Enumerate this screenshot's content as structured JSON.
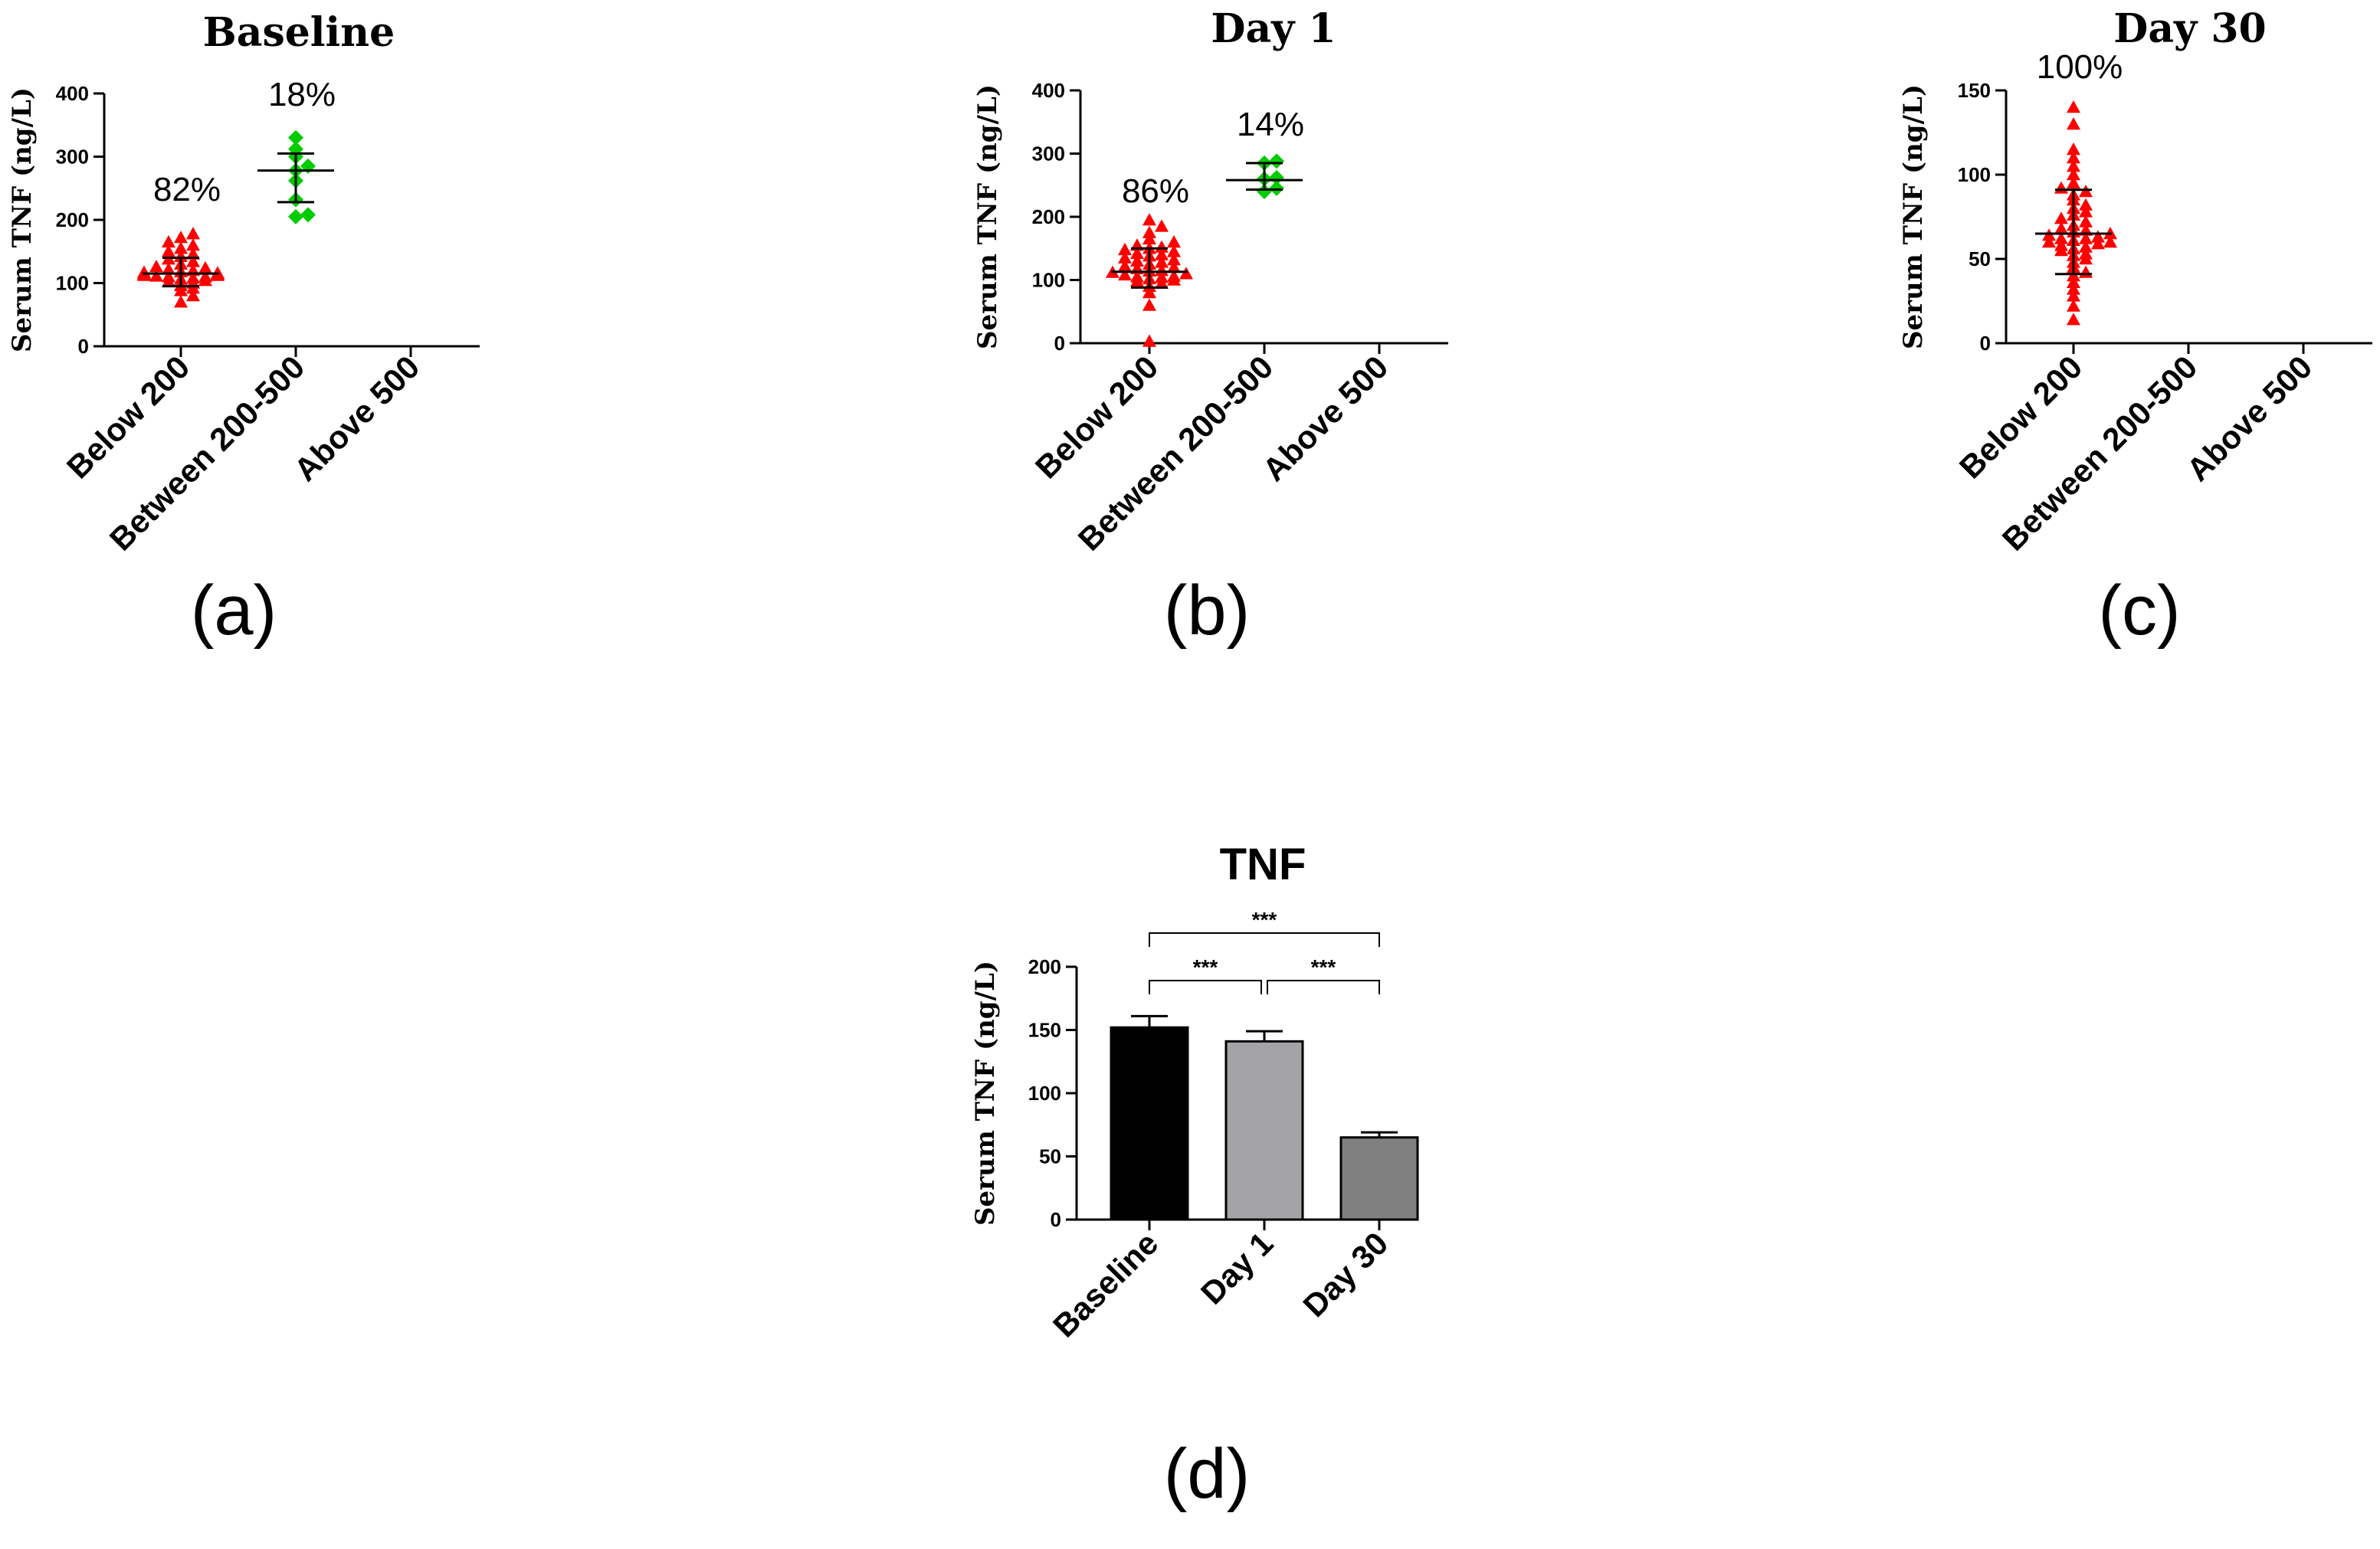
{
  "chart_data": [
    {
      "id": "a",
      "type": "scatter",
      "title": "Baseline",
      "ylabel": "Serum TNF  (ng/L)",
      "ylim": [
        0,
        400
      ],
      "yticks": [
        0,
        100,
        200,
        300,
        400
      ],
      "categories": [
        "Below 200",
        "Between 200-500",
        "Above 500"
      ],
      "panel_label": "(a)",
      "groups": [
        {
          "category": "Below 200",
          "color": "#ff0000",
          "marker": "triangle",
          "percent_label": "82%",
          "mean": 115,
          "sd_low": 95,
          "sd_high": 140,
          "points": [
            70,
            80,
            88,
            92,
            96,
            100,
            102,
            104,
            106,
            108,
            110,
            110,
            111,
            112,
            112,
            113,
            113,
            114,
            114,
            115,
            115,
            116,
            117,
            118,
            120,
            122,
            124,
            126,
            130,
            134,
            138,
            142,
            146,
            150,
            155,
            160,
            165,
            172,
            178
          ]
        },
        {
          "category": "Between 200-500",
          "color": "#00cc00",
          "marker": "diamond",
          "percent_label": "18%",
          "mean": 278,
          "sd_low": 228,
          "sd_high": 305,
          "points": [
            205,
            208,
            232,
            262,
            278,
            285,
            300,
            312,
            330
          ]
        }
      ]
    },
    {
      "id": "b",
      "type": "scatter",
      "title": "Day 1",
      "ylabel": "Serum TNF  (ng/L)",
      "ylim": [
        0,
        400
      ],
      "yticks": [
        0,
        100,
        200,
        300,
        400
      ],
      "categories": [
        "Below 200",
        "Between 200-500",
        "Above 500"
      ],
      "panel_label": "(b)",
      "groups": [
        {
          "category": "Below 200",
          "color": "#ff0000",
          "marker": "triangle",
          "percent_label": "86%",
          "mean": 113,
          "sd_low": 88,
          "sd_high": 150,
          "points": [
            3,
            60,
            80,
            90,
            95,
            98,
            100,
            102,
            104,
            105,
            106,
            108,
            110,
            112,
            114,
            115,
            118,
            120,
            122,
            125,
            128,
            130,
            132,
            135,
            138,
            140,
            142,
            145,
            148,
            150,
            152,
            155,
            160,
            165,
            175,
            185,
            195
          ]
        },
        {
          "category": "Between 200-500",
          "color": "#00cc00",
          "marker": "diamond",
          "percent_label": "14%",
          "mean": 258,
          "sd_low": 243,
          "sd_high": 285,
          "points": [
            240,
            245,
            260,
            262,
            285,
            288
          ]
        }
      ]
    },
    {
      "id": "c",
      "type": "scatter",
      "title": "Day 30",
      "ylabel": "Serum TNF  (ng/L)",
      "ylim": [
        0,
        150
      ],
      "yticks": [
        0,
        50,
        100,
        150
      ],
      "categories": [
        "Below 200",
        "Between 200-500",
        "Above 500"
      ],
      "panel_label": "(c)",
      "groups": [
        {
          "category": "Below 200",
          "color": "#ff0000",
          "marker": "triangle",
          "percent_label": "100%",
          "mean": 65,
          "sd_low": 41,
          "sd_high": 91,
          "points": [
            14,
            22,
            28,
            32,
            36,
            40,
            42,
            45,
            48,
            50,
            52,
            53,
            55,
            56,
            57,
            58,
            59,
            60,
            60,
            61,
            62,
            62,
            63,
            64,
            65,
            66,
            67,
            68,
            70,
            72,
            74,
            76,
            78,
            80,
            82,
            85,
            88,
            90,
            92,
            95,
            100,
            105,
            110,
            115,
            130,
            140
          ]
        }
      ]
    },
    {
      "id": "d",
      "type": "bar",
      "title": "TNF",
      "ylabel": "Serum TNF  (ng/L)",
      "ylim": [
        0,
        200
      ],
      "yticks": [
        0,
        50,
        100,
        150,
        200
      ],
      "categories": [
        "Baseline",
        "Day 1",
        "Day 30"
      ],
      "values": [
        152,
        141,
        65
      ],
      "errors": [
        9,
        8,
        4
      ],
      "colors": [
        "#000000",
        "#a3a3a8",
        "#808080"
      ],
      "panel_label": "(d)",
      "significance": [
        {
          "from": 0,
          "to": 1,
          "label": "***"
        },
        {
          "from": 1,
          "to": 2,
          "label": "***"
        },
        {
          "from": 0,
          "to": 2,
          "label": "***"
        }
      ]
    }
  ]
}
